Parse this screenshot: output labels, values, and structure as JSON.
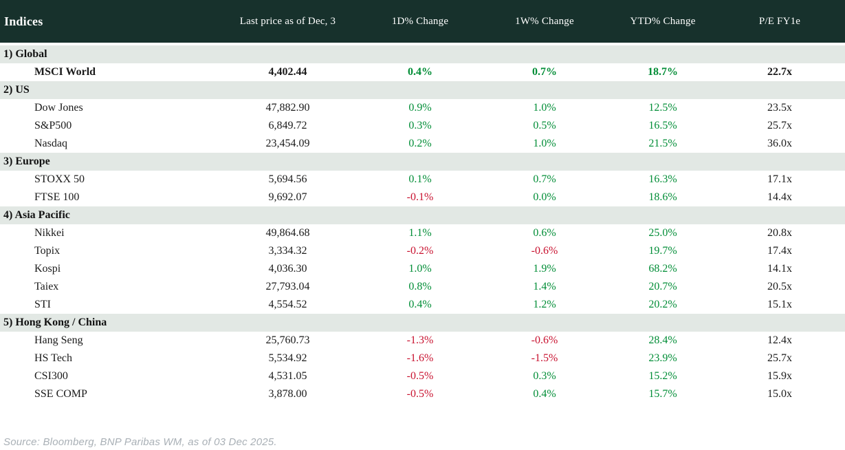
{
  "table": {
    "title": "Indices",
    "columns": [
      "Last price as of Dec, 3",
      "1D% Change",
      "1W% Change",
      "YTD% Change",
      "P/E FY1e"
    ],
    "sections": [
      {
        "label": "1) Global",
        "rows": [
          {
            "name": "MSCI World",
            "price": "4,402.44",
            "d1": "0.4%",
            "w1": "0.7%",
            "ytd": "18.7%",
            "pe": "22.7x",
            "bold": true
          }
        ]
      },
      {
        "label": "2) US",
        "rows": [
          {
            "name": "Dow Jones",
            "price": "47,882.90",
            "d1": "0.9%",
            "w1": "1.0%",
            "ytd": "12.5%",
            "pe": "23.5x",
            "bold": false
          },
          {
            "name": "S&P500",
            "price": "6,849.72",
            "d1": "0.3%",
            "w1": "0.5%",
            "ytd": "16.5%",
            "pe": "25.7x",
            "bold": false
          },
          {
            "name": "Nasdaq",
            "price": "23,454.09",
            "d1": "0.2%",
            "w1": "1.0%",
            "ytd": "21.5%",
            "pe": "36.0x",
            "bold": false
          }
        ]
      },
      {
        "label": "3) Europe",
        "rows": [
          {
            "name": "STOXX 50",
            "price": "5,694.56",
            "d1": "0.1%",
            "w1": "0.7%",
            "ytd": "16.3%",
            "pe": "17.1x",
            "bold": false
          },
          {
            "name": "FTSE 100",
            "price": "9,692.07",
            "d1": "-0.1%",
            "w1": "0.0%",
            "ytd": "18.6%",
            "pe": "14.4x",
            "bold": false
          }
        ]
      },
      {
        "label": "4) Asia Pacific",
        "rows": [
          {
            "name": "Nikkei",
            "price": "49,864.68",
            "d1": "1.1%",
            "w1": "0.6%",
            "ytd": "25.0%",
            "pe": "20.8x",
            "bold": false
          },
          {
            "name": "Topix",
            "price": "3,334.32",
            "d1": "-0.2%",
            "w1": "-0.6%",
            "ytd": "19.7%",
            "pe": "17.4x",
            "bold": false
          },
          {
            "name": "Kospi",
            "price": "4,036.30",
            "d1": "1.0%",
            "w1": "1.9%",
            "ytd": "68.2%",
            "pe": "14.1x",
            "bold": false
          },
          {
            "name": "Taiex",
            "price": "27,793.04",
            "d1": "0.8%",
            "w1": "1.4%",
            "ytd": "20.7%",
            "pe": "20.5x",
            "bold": false
          },
          {
            "name": "STI",
            "price": "4,554.52",
            "d1": "0.4%",
            "w1": "1.2%",
            "ytd": "20.2%",
            "pe": "15.1x",
            "bold": false
          }
        ]
      },
      {
        "label": "5) Hong Kong / China",
        "rows": [
          {
            "name": "Hang Seng",
            "price": "25,760.73",
            "d1": "-1.3%",
            "w1": "-0.6%",
            "ytd": "28.4%",
            "pe": "12.4x",
            "bold": false
          },
          {
            "name": "HS Tech",
            "price": "5,534.92",
            "d1": "-1.6%",
            "w1": "-1.5%",
            "ytd": "23.9%",
            "pe": "25.7x",
            "bold": false
          },
          {
            "name": "CSI300",
            "price": "4,531.05",
            "d1": "-0.5%",
            "w1": "0.3%",
            "ytd": "15.2%",
            "pe": "15.9x",
            "bold": false
          },
          {
            "name": "SSE COMP",
            "price": "3,878.00",
            "d1": "-0.5%",
            "w1": "0.4%",
            "ytd": "15.7%",
            "pe": "15.0x",
            "bold": false
          }
        ]
      }
    ]
  },
  "footer": {
    "source": "Source: Bloomberg, BNP Paribas WM, as of 03 Dec 2025."
  },
  "colors": {
    "header_bg": "#17312c",
    "header_text": "#ffffff",
    "section_bg": "#e2e8e4",
    "positive": "#008d36",
    "negative": "#c8102e",
    "source_text": "#a9b0b6"
  }
}
